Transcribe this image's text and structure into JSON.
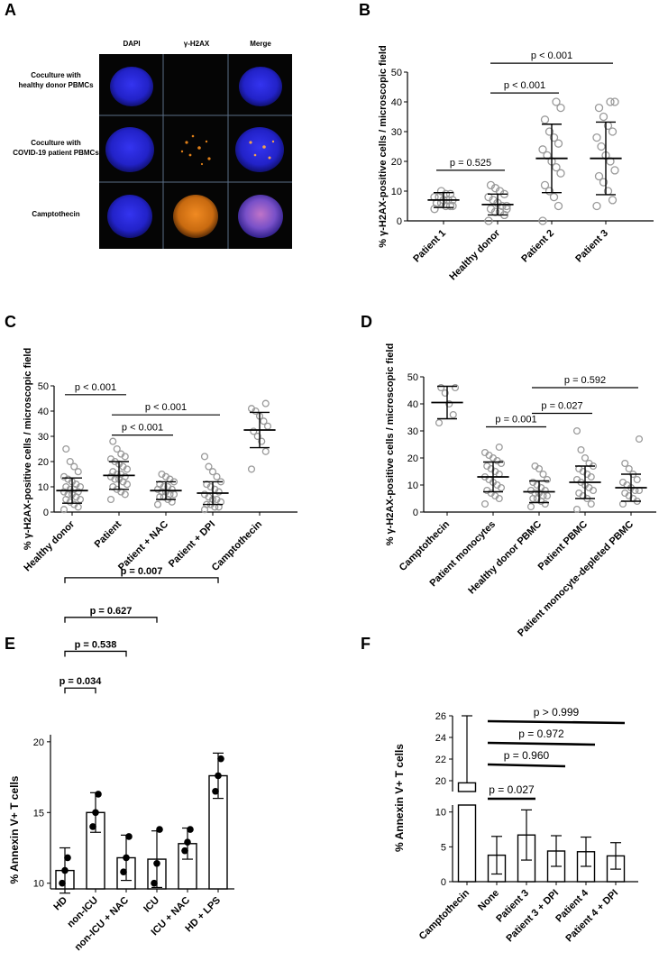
{
  "panel_letters": [
    "A",
    "B",
    "C",
    "D",
    "E",
    "F"
  ],
  "microscopy": {
    "columns": [
      "DAPI",
      "γ-H2AX",
      "Merge"
    ],
    "rows": [
      [
        "Coculture with",
        "healthy donor PBMCs"
      ],
      [
        "Coculture with",
        "COVID-19 patient PBMCs"
      ],
      [
        "Camptothecin"
      ]
    ]
  },
  "colors": {
    "nucleus_blue": "#2a2ad8",
    "orange_foci": "#e07f18",
    "background": "#050505",
    "point_gray": "#9a9a9a"
  },
  "chart_data": [
    {
      "id": "B",
      "type": "scatter",
      "ylabel": "% γ-H2AX-positive cells / microscopic field",
      "ylim": [
        0,
        50
      ],
      "yticks": [
        0,
        10,
        20,
        30,
        40,
        50
      ],
      "categories": [
        "Patient 1",
        "Healthy donor",
        "Patient 2",
        "Patient 3"
      ],
      "points": [
        [
          4,
          5,
          5,
          6,
          6,
          7,
          7,
          7,
          8,
          8,
          9,
          9,
          10,
          6,
          5
        ],
        [
          0,
          2,
          3,
          3,
          4,
          5,
          5,
          6,
          7,
          8,
          9,
          10,
          11,
          12,
          4
        ],
        [
          0,
          5,
          8,
          10,
          12,
          16,
          18,
          20,
          22,
          24,
          26,
          28,
          30,
          34,
          38,
          40
        ],
        [
          5,
          7,
          10,
          13,
          15,
          17,
          20,
          22,
          25,
          28,
          30,
          32,
          35,
          38,
          40,
          40
        ]
      ],
      "mean": [
        7,
        5.5,
        21,
        21
      ],
      "sd": [
        2.5,
        3.5,
        11.5,
        12.2
      ],
      "comparisons": [
        {
          "a": 0,
          "b": 1,
          "label": "p = 0.525",
          "y": 17
        },
        {
          "a": 1,
          "b": 2,
          "label": "p < 0.001",
          "y": 43
        },
        {
          "a": 1,
          "b": 3,
          "label": "p < 0.001",
          "y": 53
        }
      ]
    },
    {
      "id": "C",
      "type": "scatter",
      "ylabel": "% γ-H2AX-positive cells / microscopic field",
      "ylim": [
        0,
        50
      ],
      "yticks": [
        0,
        10,
        20,
        30,
        40,
        50
      ],
      "categories": [
        "Healthy donor",
        "Patient",
        "Patient + NAC",
        "Patient + DPI",
        "Camptothecin"
      ],
      "points": [
        [
          1,
          2,
          3,
          4,
          5,
          5,
          6,
          7,
          7,
          8,
          8,
          9,
          9,
          10,
          10,
          11,
          12,
          13,
          14,
          16,
          18,
          20,
          25
        ],
        [
          5,
          7,
          8,
          9,
          10,
          11,
          12,
          13,
          13,
          14,
          14,
          15,
          15,
          16,
          17,
          18,
          19,
          20,
          21,
          22,
          23,
          25,
          28
        ],
        [
          3,
          4,
          5,
          6,
          6,
          7,
          7,
          8,
          8,
          9,
          9,
          10,
          10,
          11,
          12,
          13,
          14,
          15
        ],
        [
          1,
          2,
          2,
          3,
          3,
          4,
          5,
          5,
          6,
          7,
          8,
          9,
          10,
          11,
          12,
          14,
          16,
          18,
          22
        ],
        [
          17,
          24,
          28,
          30,
          32,
          34,
          36,
          38,
          40,
          41,
          43
        ]
      ],
      "mean": [
        8.5,
        14.5,
        8.5,
        7.5,
        32.5
      ],
      "sd": [
        5,
        5.5,
        3.5,
        4.5,
        7
      ],
      "comparisons": [
        {
          "a": 0,
          "b": 1,
          "label": "p < 0.001",
          "y": 46.5
        },
        {
          "a": 1,
          "b": 2,
          "label": "p < 0.001",
          "y": 30.5
        },
        {
          "a": 1,
          "b": 3,
          "label": "p < 0.001",
          "y": 38.5
        }
      ]
    },
    {
      "id": "D",
      "type": "scatter",
      "ylabel": "% γ-H2AX-positive cells / microscopic field",
      "ylim": [
        0,
        50
      ],
      "yticks": [
        0,
        10,
        20,
        30,
        40,
        50
      ],
      "categories": [
        "Camptothecin",
        "Patient monocytes",
        "Healthy donor PBMC",
        "Patient PBMC",
        "Patient monocyte-depleted PBMC"
      ],
      "points": [
        [
          33,
          36,
          40,
          44,
          46,
          46
        ],
        [
          3,
          5,
          6,
          7,
          8,
          9,
          10,
          11,
          12,
          13,
          14,
          15,
          16,
          17,
          18,
          19,
          20,
          21,
          22,
          24
        ],
        [
          2,
          3,
          4,
          5,
          5,
          6,
          6,
          7,
          7,
          8,
          8,
          9,
          10,
          11,
          12,
          14,
          16,
          17
        ],
        [
          1,
          3,
          5,
          6,
          7,
          8,
          9,
          10,
          11,
          12,
          13,
          14,
          15,
          16,
          17,
          18,
          20,
          23,
          30
        ],
        [
          3,
          4,
          5,
          6,
          7,
          8,
          8,
          9,
          10,
          11,
          12,
          14,
          16,
          18,
          27
        ]
      ],
      "mean": [
        40.5,
        13,
        7.5,
        11,
        9
      ],
      "sd": [
        6,
        5.5,
        4,
        6,
        5
      ],
      "comparisons": [
        {
          "a": 1,
          "b": 2,
          "label": "p = 0.001",
          "y": 31.5
        },
        {
          "a": 2,
          "b": 3,
          "label": "p = 0.027",
          "y": 36.5
        },
        {
          "a": 2,
          "b": 4,
          "label": "p = 0.592",
          "y": 46
        }
      ]
    },
    {
      "id": "E",
      "type": "bar",
      "ylabel": "% Annexin V+ T cells",
      "ylim": [
        9.6,
        20.5
      ],
      "yticks": [
        10,
        15,
        20
      ],
      "categories": [
        "HD",
        "non-ICU",
        "non-ICU + NAC",
        "ICU",
        "ICU + NAC",
        "HD + LPS"
      ],
      "values": [
        10.9,
        15.0,
        11.8,
        11.7,
        12.8,
        17.6
      ],
      "sd": [
        1.6,
        1.4,
        1.6,
        2.0,
        1.1,
        1.6
      ],
      "points": [
        [
          10.0,
          10.9,
          11.8
        ],
        [
          14.0,
          15.0,
          16.3
        ],
        [
          10.8,
          11.8,
          13.3
        ],
        [
          10.0,
          11.4,
          13.8
        ],
        [
          12.3,
          12.9,
          13.8
        ],
        [
          16.5,
          17.6,
          18.8
        ]
      ],
      "comparisons": [
        {
          "a": 0,
          "b": 1,
          "label": "p = 0.034",
          "y": 23.8
        },
        {
          "a": 0,
          "b": 2,
          "label": "p = 0.538",
          "y": 26.4
        },
        {
          "a": 0,
          "b": 3,
          "label": "p = 0.627",
          "y": 28.8
        },
        {
          "a": 0,
          "b": 5,
          "label": "p = 0.007",
          "y": 31.6
        }
      ]
    },
    {
      "id": "F",
      "type": "bar",
      "ylabel": "% Annexin V+ T cells",
      "ylim_lower": [
        0,
        11
      ],
      "ylim_upper": [
        19,
        26
      ],
      "yticks_lower": [
        0,
        5,
        10
      ],
      "yticks_upper": [
        20,
        22,
        24,
        26
      ],
      "categories": [
        "Camptothecin",
        "None",
        "Patient 3",
        "Patient 3 + DPI",
        "Patient 4",
        "Patient 4 + DPI"
      ],
      "values": [
        19.8,
        3.8,
        6.7,
        4.4,
        4.3,
        3.7
      ],
      "sd": [
        6.2,
        2.7,
        3.6,
        2.2,
        2.1,
        1.9
      ],
      "comparisons": [
        {
          "a": 1,
          "b": 2,
          "label": "p = 0.027"
        },
        {
          "a": 1,
          "b": 3,
          "label": "p = 0.960"
        },
        {
          "a": 1,
          "b": 4,
          "label": "p = 0.972"
        },
        {
          "a": 1,
          "b": 5,
          "label": "p > 0.999"
        }
      ]
    }
  ]
}
